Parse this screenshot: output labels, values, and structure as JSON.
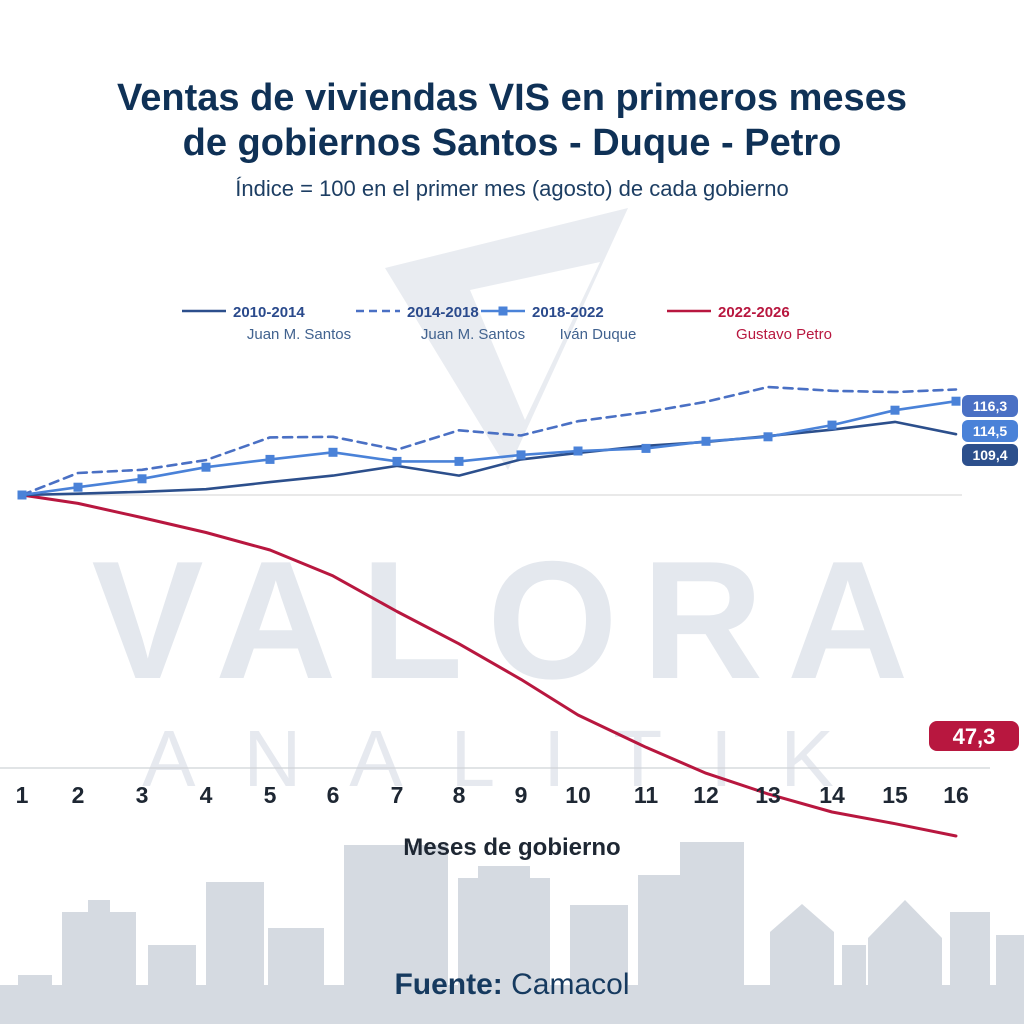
{
  "title_line1": "Ventas de viviendas VIS en primeros meses",
  "title_line2": "de gobiernos Santos - Duque - Petro",
  "subtitle": "Índice = 100 en el primer mes (agosto) de cada gobierno",
  "watermark": {
    "main": "VALORA",
    "sub": "ANALITIK"
  },
  "source": {
    "label": "Fuente:",
    "value": "Camacol"
  },
  "colors": {
    "santos1": "#2c4f8c",
    "santos2": "#4a70c4",
    "duque": "#4a82d8",
    "petro": "#b8173f",
    "watermark": "#e4e8ee",
    "skyline": "#d5dae1"
  },
  "chart_data": {
    "type": "line",
    "title": "Ventas de viviendas VIS en primeros meses de gobiernos Santos - Duque - Petro",
    "subtitle": "Índice = 100 en el primer mes (agosto) de cada gobierno",
    "xlabel": "Meses de gobierno",
    "ylabel": "",
    "x": [
      1,
      2,
      3,
      4,
      5,
      6,
      7,
      8,
      9,
      10,
      11,
      12,
      13,
      14,
      15,
      16
    ],
    "ylim": [
      40,
      125
    ],
    "grid": false,
    "legend_position": "top",
    "series": [
      {
        "name": "2010-2014",
        "sublabel": "Juan M. Santos",
        "style": "solid",
        "color": "#2c4f8c",
        "end_label": "109,4",
        "values": [
          100,
          100.2,
          100.5,
          100.9,
          102,
          103,
          104.5,
          103,
          105.5,
          106.5,
          107.6,
          108.2,
          109.1,
          110.1,
          111.3,
          109.4
        ]
      },
      {
        "name": "2014-2018",
        "sublabel": "Juan M. Santos",
        "style": "dashed",
        "color": "#4a70c4",
        "end_label": "116,3",
        "values": [
          100,
          103.4,
          103.9,
          105.4,
          108.9,
          109,
          107,
          110,
          109.2,
          111.4,
          112.8,
          114.4,
          116.7,
          116.1,
          115.9,
          116.3
        ]
      },
      {
        "name": "2018-2022",
        "sublabel": "Iván Duque",
        "style": "solid-square",
        "color": "#4a82d8",
        "end_label": "114,5",
        "values": [
          100,
          101.2,
          102.5,
          104.3,
          105.5,
          106.6,
          105.2,
          105.2,
          106.2,
          106.8,
          107.2,
          108.3,
          109,
          110.8,
          113.1,
          114.5
        ]
      },
      {
        "name": "2022-2026",
        "sublabel": "Gustavo Petro",
        "style": "solid",
        "color": "#b8173f",
        "end_label": "47,3",
        "values": [
          100,
          98.7,
          96.5,
          94.2,
          91.5,
          87.5,
          82,
          77,
          71.5,
          66,
          61,
          57,
          53.8,
          51,
          49.2,
          47.3
        ]
      }
    ]
  }
}
